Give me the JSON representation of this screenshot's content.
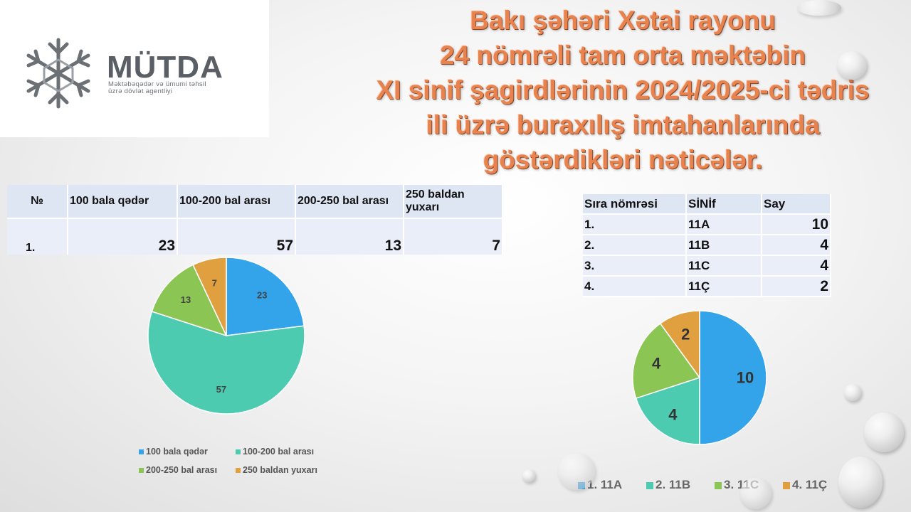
{
  "logo": {
    "name": "MÜTDA",
    "subtitle_line1": "Məktəbəqədər və ümumi təhsil",
    "subtitle_line2": "üzrə dövlət agentliyi"
  },
  "title_lines": [
    "Bakı şəhəri Xətai rayonu",
    "24 nömrəli tam orta məktəbin",
    "XI sinif şagirdlərinin 2024/2025-ci tədris",
    "ili üzrə buraxılış imtahanlarında",
    "göstərdikləri nəticələr."
  ],
  "scores_table": {
    "headers": [
      "№",
      "100 bala qədər",
      "100-200 bal arası",
      "200-250 bal arası",
      "250 baldan yuxarı"
    ],
    "row": [
      "1.",
      "23",
      "57",
      "13",
      "7"
    ]
  },
  "classes_table": {
    "headers": [
      "Sıra nömrəsi",
      "SİNİf",
      "Say"
    ],
    "rows": [
      [
        "1.",
        "11A",
        "10"
      ],
      [
        "2.",
        "11B",
        "4"
      ],
      [
        "3.",
        "11C",
        "4"
      ],
      [
        "4.",
        "11Ç",
        "2"
      ]
    ]
  },
  "chart_data": [
    {
      "type": "pie",
      "categories": [
        "100 bala qədər",
        "100-200 bal arası",
        "200-250 bal arası",
        "250 baldan yuxarı"
      ],
      "values": [
        23,
        57,
        13,
        7
      ],
      "colors": [
        "#33a3ea",
        "#4ccbb0",
        "#8bc554",
        "#e1a03f"
      ],
      "legend_position": "bottom"
    },
    {
      "type": "pie",
      "categories": [
        "1. 11A",
        "2. 11B",
        "3. 11C",
        "4. 11Ç"
      ],
      "values": [
        10,
        4,
        4,
        2
      ],
      "colors": [
        "#33a3ea",
        "#4ccbb0",
        "#8bc554",
        "#e1a03f"
      ],
      "legend_position": "bottom"
    }
  ]
}
